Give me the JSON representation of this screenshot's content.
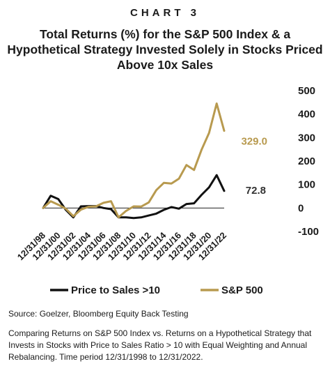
{
  "kicker": "CHART 3",
  "title": "Total Returns (%) for the S&P 500 Index & a Hypothetical Strategy Invested Solely in Stocks Priced Above 10x Sales",
  "source": "Source: Goelzer, Bloomberg Equity Back Testing",
  "note": "Comparing Returns on S&P 500 Index vs. Returns on a Hypothetical Strategy that Invests in Stocks with Price to Sales Ratio > 10 with Equal Weighting and Annual Rebalancing. Time period 12/31/1998 to 12/31/2022.",
  "chart_data": {
    "type": "line",
    "x": [
      "12/31/98",
      "12/31/99",
      "12/31/00",
      "12/31/01",
      "12/31/02",
      "12/31/03",
      "12/31/04",
      "12/31/05",
      "12/31/06",
      "12/31/07",
      "12/31/08",
      "12/31/09",
      "12/31/10",
      "12/31/11",
      "12/31/12",
      "12/31/13",
      "12/31/14",
      "12/31/15",
      "12/31/16",
      "12/31/17",
      "12/31/18",
      "12/31/19",
      "12/31/20",
      "12/31/21",
      "12/31/22"
    ],
    "x_tick_labels": [
      "12/31/98",
      "12/31/00",
      "12/31/02",
      "12/31/04",
      "12/31/06",
      "12/31/08",
      "12/31/10",
      "12/31/12",
      "12/31/14",
      "12/31/16",
      "12/31/18",
      "12/31/20",
      "12/31/22"
    ],
    "ylim": [
      -100,
      500
    ],
    "y_ticks": [
      -100,
      0,
      100,
      200,
      300,
      400,
      500
    ],
    "grid": false,
    "legend_position": "bottom",
    "series": [
      {
        "name": "Price to Sales >10",
        "color": "#111111",
        "values": [
          0,
          52,
          38,
          -8,
          -40,
          7,
          8,
          8,
          0,
          -5,
          -40,
          -40,
          -43,
          -40,
          -32,
          -24,
          -8,
          4,
          -3,
          17,
          20,
          56,
          88,
          140,
          72.8
        ],
        "end_label": "72.8"
      },
      {
        "name": "S&P 500",
        "color": "#b89a4f",
        "values": [
          0,
          29,
          14,
          -3,
          -35,
          -7,
          5,
          7,
          22,
          29,
          -40,
          -12,
          7,
          6,
          24,
          76,
          107,
          104,
          125,
          183,
          162,
          248,
          320,
          445,
          329.0
        ],
        "end_label": "329.0"
      }
    ]
  }
}
